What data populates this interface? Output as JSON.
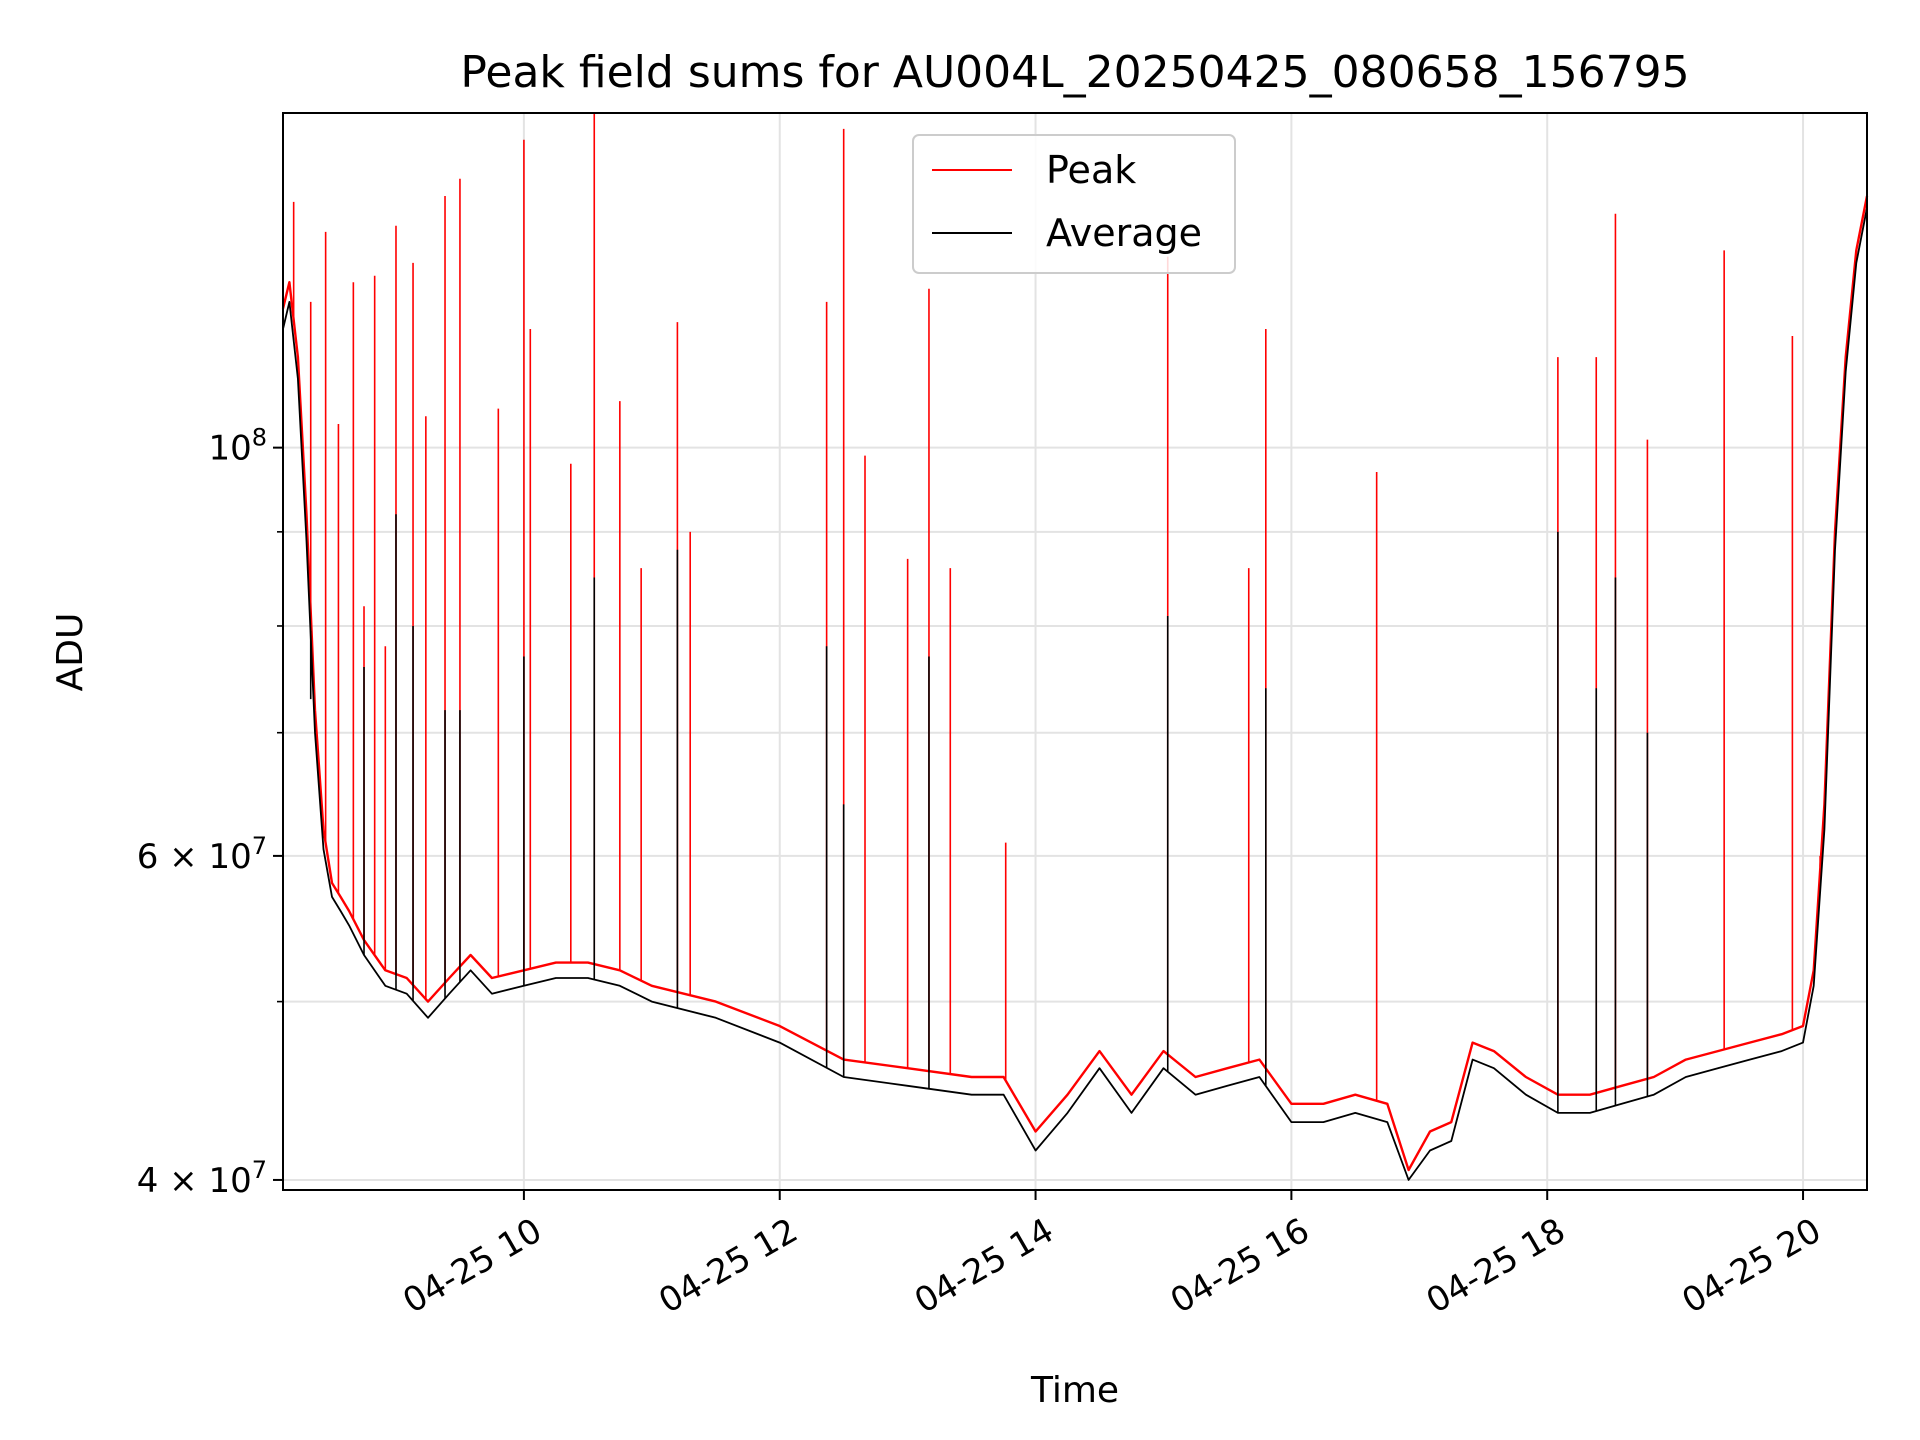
{
  "chart_data": {
    "type": "line",
    "title": "Peak field sums for AU004L_20250425_080658_156795",
    "xlabel": "Time",
    "ylabel": "ADU",
    "x_range": [
      "2025-04-25 08:07",
      "2025-04-25 20:30"
    ],
    "y_scale": "log",
    "ylim": [
      39500000,
      152000000
    ],
    "grid": true,
    "legend_position": "top-center",
    "x_ticks": [
      {
        "value": "2025-04-25 10:00",
        "label": "04-25 10"
      },
      {
        "value": "2025-04-25 12:00",
        "label": "04-25 12"
      },
      {
        "value": "2025-04-25 14:00",
        "label": "04-25 14"
      },
      {
        "value": "2025-04-25 16:00",
        "label": "04-25 16"
      },
      {
        "value": "2025-04-25 18:00",
        "label": "04-25 18"
      },
      {
        "value": "2025-04-25 20:00",
        "label": "04-25 20"
      }
    ],
    "y_ticks": [
      {
        "value": 40000000,
        "base": "4",
        "exp": "7"
      },
      {
        "value": 60000000,
        "base": "6",
        "exp": "7"
      },
      {
        "value": 100000000,
        "base": "10",
        "exp": "8"
      }
    ],
    "y_minor_ticks": [
      50000000,
      70000000,
      80000000,
      90000000
    ],
    "series": [
      {
        "name": "Peak",
        "color": "#ff0000",
        "x": [
          "2025-04-25 08:07",
          "2025-04-25 08:10",
          "2025-04-25 08:14",
          "2025-04-25 08:18",
          "2025-04-25 08:22",
          "2025-04-25 08:26",
          "2025-04-25 08:30",
          "2025-04-25 08:34",
          "2025-04-25 08:38",
          "2025-04-25 08:45",
          "2025-04-25 08:55",
          "2025-04-25 09:05",
          "2025-04-25 09:15",
          "2025-04-25 09:25",
          "2025-04-25 09:35",
          "2025-04-25 09:45",
          "2025-04-25 10:00",
          "2025-04-25 10:15",
          "2025-04-25 10:30",
          "2025-04-25 10:45",
          "2025-04-25 11:00",
          "2025-04-25 11:30",
          "2025-04-25 12:00",
          "2025-04-25 12:30",
          "2025-04-25 13:00",
          "2025-04-25 13:30",
          "2025-04-25 13:45",
          "2025-04-25 14:00",
          "2025-04-25 14:15",
          "2025-04-25 14:30",
          "2025-04-25 14:45",
          "2025-04-25 15:00",
          "2025-04-25 15:15",
          "2025-04-25 15:30",
          "2025-04-25 15:45",
          "2025-04-25 16:00",
          "2025-04-25 16:15",
          "2025-04-25 16:30",
          "2025-04-25 16:45",
          "2025-04-25 16:55",
          "2025-04-25 17:05",
          "2025-04-25 17:15",
          "2025-04-25 17:25",
          "2025-04-25 17:35",
          "2025-04-25 17:50",
          "2025-04-25 18:05",
          "2025-04-25 18:20",
          "2025-04-25 18:35",
          "2025-04-25 18:50",
          "2025-04-25 19:05",
          "2025-04-25 19:20",
          "2025-04-25 19:35",
          "2025-04-25 19:50",
          "2025-04-25 20:00",
          "2025-04-25 20:05",
          "2025-04-25 20:10",
          "2025-04-25 20:15",
          "2025-04-25 20:20",
          "2025-04-25 20:25",
          "2025-04-25 20:30"
        ],
        "y": [
          119000000,
          123000000,
          112000000,
          92000000,
          72000000,
          62000000,
          58000000,
          57000000,
          56000000,
          54000000,
          52000000,
          51500000,
          50000000,
          51500000,
          53000000,
          51500000,
          52000000,
          52500000,
          52500000,
          52000000,
          51000000,
          50000000,
          48500000,
          46500000,
          46000000,
          45500000,
          45500000,
          42500000,
          44500000,
          47000000,
          44500000,
          47000000,
          45500000,
          46000000,
          46500000,
          44000000,
          44000000,
          44500000,
          44000000,
          40500000,
          42500000,
          43000000,
          47500000,
          47000000,
          45500000,
          44500000,
          44500000,
          45000000,
          45500000,
          46500000,
          47000000,
          47500000,
          48000000,
          48500000,
          52000000,
          64000000,
          90000000,
          112000000,
          128000000,
          137000000
        ],
        "spikes": [
          {
            "x": "2025-04-25 08:12",
            "y": 136000000
          },
          {
            "x": "2025-04-25 08:20",
            "y": 120000000
          },
          {
            "x": "2025-04-25 08:27",
            "y": 131000000
          },
          {
            "x": "2025-04-25 08:33",
            "y": 103000000
          },
          {
            "x": "2025-04-25 08:40",
            "y": 123000000
          },
          {
            "x": "2025-04-25 08:45",
            "y": 82000000
          },
          {
            "x": "2025-04-25 08:50",
            "y": 124000000
          },
          {
            "x": "2025-04-25 08:55",
            "y": 78000000
          },
          {
            "x": "2025-04-25 09:00",
            "y": 132000000
          },
          {
            "x": "2025-04-25 09:08",
            "y": 126000000
          },
          {
            "x": "2025-04-25 09:14",
            "y": 104000000
          },
          {
            "x": "2025-04-25 09:23",
            "y": 137000000
          },
          {
            "x": "2025-04-25 09:30",
            "y": 140000000
          },
          {
            "x": "2025-04-25 09:48",
            "y": 105000000
          },
          {
            "x": "2025-04-25 10:00",
            "y": 147000000
          },
          {
            "x": "2025-04-25 10:03",
            "y": 116000000
          },
          {
            "x": "2025-04-25 10:22",
            "y": 98000000
          },
          {
            "x": "2025-04-25 10:33",
            "y": 152000000
          },
          {
            "x": "2025-04-25 10:45",
            "y": 106000000
          },
          {
            "x": "2025-04-25 10:55",
            "y": 86000000
          },
          {
            "x": "2025-04-25 11:12",
            "y": 117000000
          },
          {
            "x": "2025-04-25 11:18",
            "y": 90000000
          },
          {
            "x": "2025-04-25 12:22",
            "y": 120000000
          },
          {
            "x": "2025-04-25 12:30",
            "y": 149000000
          },
          {
            "x": "2025-04-25 12:40",
            "y": 99000000
          },
          {
            "x": "2025-04-25 13:00",
            "y": 87000000
          },
          {
            "x": "2025-04-25 13:10",
            "y": 122000000
          },
          {
            "x": "2025-04-25 13:20",
            "y": 86000000
          },
          {
            "x": "2025-04-25 13:46",
            "y": 61000000
          },
          {
            "x": "2025-04-25 15:02",
            "y": 127000000
          },
          {
            "x": "2025-04-25 15:40",
            "y": 86000000
          },
          {
            "x": "2025-04-25 15:48",
            "y": 116000000
          },
          {
            "x": "2025-04-25 16:40",
            "y": 97000000
          },
          {
            "x": "2025-04-25 18:05",
            "y": 112000000
          },
          {
            "x": "2025-04-25 18:23",
            "y": 112000000
          },
          {
            "x": "2025-04-25 18:32",
            "y": 134000000
          },
          {
            "x": "2025-04-25 18:47",
            "y": 101000000
          },
          {
            "x": "2025-04-25 19:23",
            "y": 128000000
          },
          {
            "x": "2025-04-25 19:55",
            "y": 115000000
          },
          {
            "x": "2025-04-25 20:08",
            "y": 60000000
          }
        ]
      },
      {
        "name": "Average",
        "color": "#000000",
        "x": [
          "2025-04-25 08:07",
          "2025-04-25 08:10",
          "2025-04-25 08:14",
          "2025-04-25 08:18",
          "2025-04-25 08:22",
          "2025-04-25 08:26",
          "2025-04-25 08:30",
          "2025-04-25 08:34",
          "2025-04-25 08:38",
          "2025-04-25 08:45",
          "2025-04-25 08:55",
          "2025-04-25 09:05",
          "2025-04-25 09:15",
          "2025-04-25 09:25",
          "2025-04-25 09:35",
          "2025-04-25 09:45",
          "2025-04-25 10:00",
          "2025-04-25 10:15",
          "2025-04-25 10:30",
          "2025-04-25 10:45",
          "2025-04-25 11:00",
          "2025-04-25 11:30",
          "2025-04-25 12:00",
          "2025-04-25 12:30",
          "2025-04-25 13:00",
          "2025-04-25 13:30",
          "2025-04-25 13:45",
          "2025-04-25 14:00",
          "2025-04-25 14:15",
          "2025-04-25 14:30",
          "2025-04-25 14:45",
          "2025-04-25 15:00",
          "2025-04-25 15:15",
          "2025-04-25 15:30",
          "2025-04-25 15:45",
          "2025-04-25 16:00",
          "2025-04-25 16:15",
          "2025-04-25 16:30",
          "2025-04-25 16:45",
          "2025-04-25 16:55",
          "2025-04-25 17:05",
          "2025-04-25 17:15",
          "2025-04-25 17:25",
          "2025-04-25 17:35",
          "2025-04-25 17:50",
          "2025-04-25 18:05",
          "2025-04-25 18:20",
          "2025-04-25 18:35",
          "2025-04-25 18:50",
          "2025-04-25 19:05",
          "2025-04-25 19:20",
          "2025-04-25 19:35",
          "2025-04-25 19:50",
          "2025-04-25 20:00",
          "2025-04-25 20:05",
          "2025-04-25 20:10",
          "2025-04-25 20:15",
          "2025-04-25 20:20",
          "2025-04-25 20:25",
          "2025-04-25 20:30"
        ],
        "y": [
          116000000,
          120000000,
          109000000,
          89000000,
          70000000,
          60500000,
          57000000,
          56000000,
          55000000,
          53000000,
          51000000,
          50500000,
          49000000,
          50500000,
          52000000,
          50500000,
          51000000,
          51500000,
          51500000,
          51000000,
          50000000,
          49000000,
          47500000,
          45500000,
          45000000,
          44500000,
          44500000,
          41500000,
          43500000,
          46000000,
          43500000,
          46000000,
          44500000,
          45000000,
          45500000,
          43000000,
          43000000,
          43500000,
          43000000,
          40000000,
          41500000,
          42000000,
          46500000,
          46000000,
          44500000,
          43500000,
          43500000,
          44000000,
          44500000,
          45500000,
          46000000,
          46500000,
          47000000,
          47500000,
          51000000,
          62000000,
          88000000,
          110000000,
          126000000,
          135000000
        ],
        "spikes": [
          {
            "x": "2025-04-25 08:20",
            "y": 73000000
          },
          {
            "x": "2025-04-25 08:45",
            "y": 76000000
          },
          {
            "x": "2025-04-25 09:00",
            "y": 92000000
          },
          {
            "x": "2025-04-25 09:08",
            "y": 80000000
          },
          {
            "x": "2025-04-25 09:23",
            "y": 72000000
          },
          {
            "x": "2025-04-25 09:30",
            "y": 72000000
          },
          {
            "x": "2025-04-25 10:00",
            "y": 77000000
          },
          {
            "x": "2025-04-25 10:33",
            "y": 85000000
          },
          {
            "x": "2025-04-25 11:12",
            "y": 88000000
          },
          {
            "x": "2025-04-25 12:22",
            "y": 78000000
          },
          {
            "x": "2025-04-25 12:30",
            "y": 64000000
          },
          {
            "x": "2025-04-25 13:10",
            "y": 77000000
          },
          {
            "x": "2025-04-25 15:02",
            "y": 81000000
          },
          {
            "x": "2025-04-25 15:48",
            "y": 74000000
          },
          {
            "x": "2025-04-25 18:05",
            "y": 90000000
          },
          {
            "x": "2025-04-25 18:23",
            "y": 74000000
          },
          {
            "x": "2025-04-25 18:32",
            "y": 85000000
          },
          {
            "x": "2025-04-25 18:47",
            "y": 70000000
          }
        ]
      }
    ]
  }
}
